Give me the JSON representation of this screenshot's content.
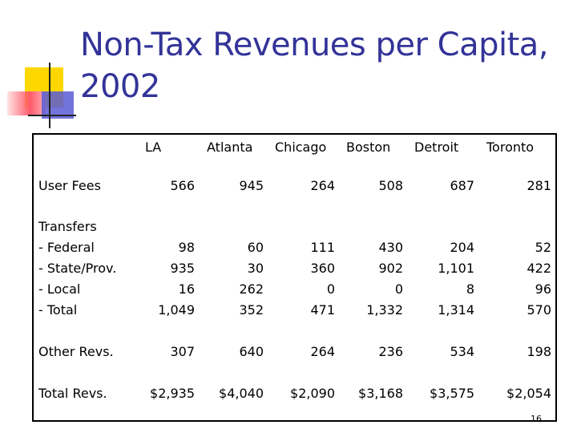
{
  "title": "Non-Tax Revenues per Capita, 2002",
  "columns": [
    "LA",
    "Atlanta",
    "Chicago",
    "Boston",
    "Detroit",
    "Toronto"
  ],
  "rows": {
    "user_fees": {
      "label": "User Fees",
      "values": [
        "566",
        "945",
        "264",
        "508",
        "687",
        "281"
      ]
    },
    "transfers": {
      "label": "Transfers",
      "federal": {
        "label": "- Federal",
        "values": [
          "98",
          "60",
          "111",
          "430",
          "204",
          "52"
        ]
      },
      "state": {
        "label": "- State/Prov.",
        "values": [
          "935",
          "30",
          "360",
          "902",
          "1,101",
          "422"
        ]
      },
      "local": {
        "label": "- Local",
        "values": [
          "16",
          "262",
          "0",
          "0",
          "8",
          "96"
        ]
      },
      "total": {
        "label": "- Total",
        "values": [
          "1,049",
          "352",
          "471",
          "1,332",
          "1,314",
          "570"
        ]
      }
    },
    "other_revs": {
      "label": "Other Revs.",
      "values": [
        "307",
        "640",
        "264",
        "236",
        "534",
        "198"
      ]
    },
    "total_revs": {
      "label": "Total Revs.",
      "values": [
        "$2,935",
        "$4,040",
        "$2,090",
        "$3,168",
        "$3,575",
        "$2,054"
      ]
    }
  },
  "page_number": "16",
  "colors": {
    "title": "#333399",
    "accent_yellow": "#ffd700",
    "accent_red": "#ff5b6b",
    "accent_blue": "#5a5ad6"
  }
}
